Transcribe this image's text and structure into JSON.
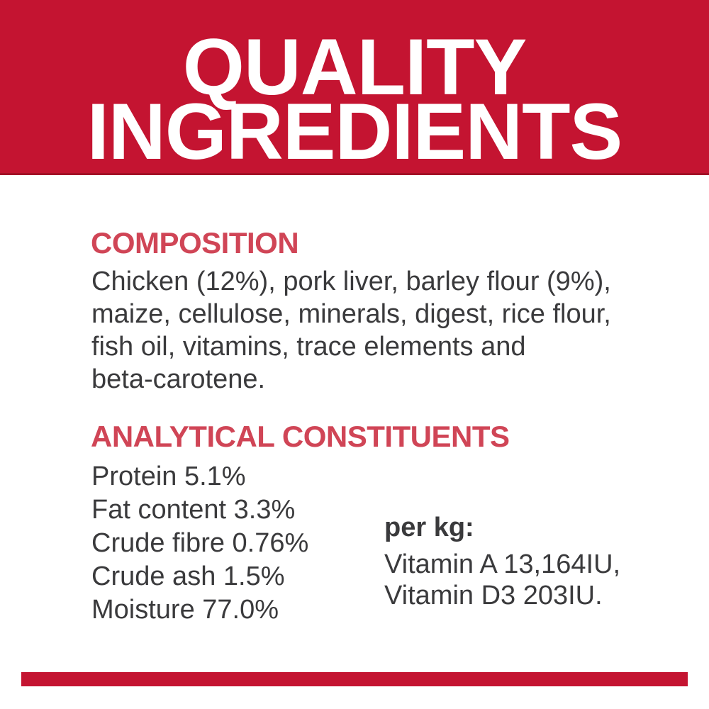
{
  "banner": {
    "title": "QUALITY\nINGREDIENTS"
  },
  "composition": {
    "heading": "COMPOSITION",
    "body": "Chicken (12%), pork liver, barley flour (9%),\nmaize, cellulose, minerals, digest, rice flour,\nfish oil, vitamins, trace elements and\nbeta-carotene."
  },
  "analytical": {
    "heading": "ANALYTICAL CONSTITUENTS",
    "items": [
      "Protein 5.1%",
      "Fat content 3.3%",
      "Crude fibre 0.76%",
      "Crude ash 1.5%",
      "Moisture 77.0%"
    ],
    "per_kg": {
      "label": "per kg:",
      "lines": [
        "Vitamin A 13,164IU,",
        "Vitamin D3 203IU."
      ]
    }
  },
  "colors": {
    "banner_red": "#c41431",
    "banner_border_red": "#a31127",
    "heading_red": "#d04556",
    "text_dark": "#3a3a3c",
    "background": "#ffffff"
  }
}
